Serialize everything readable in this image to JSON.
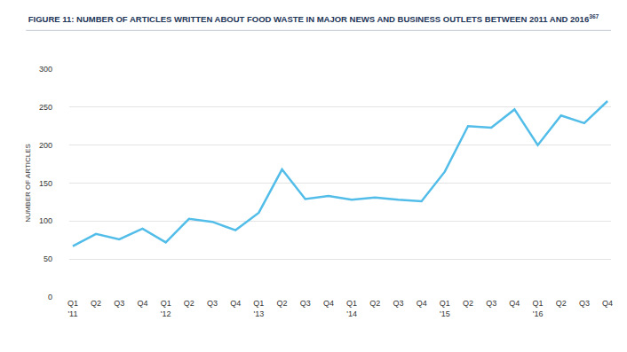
{
  "chart_data": {
    "type": "line",
    "title": "FIGURE 11: NUMBER OF ARTICLES WRITTEN ABOUT FOOD WASTE IN MAJOR NEWS AND BUSINESS OUTLETS BETWEEN 2011 AND 2016",
    "footnote": "367",
    "y_label": "NUMBER OF ARTICLES",
    "categories": [
      "Q1\n'11",
      "Q2",
      "Q3",
      "Q4",
      "Q1\n'12",
      "Q2",
      "Q3",
      "Q4",
      "Q1\n'13",
      "Q2",
      "Q3",
      "Q4",
      "Q1\n'14",
      "Q2",
      "Q3",
      "Q4",
      "Q1\n'15",
      "Q2",
      "Q3",
      "Q4",
      "Q1\n'16",
      "Q2",
      "Q3",
      "Q4"
    ],
    "values": [
      67,
      83,
      76,
      90,
      72,
      103,
      99,
      88,
      111,
      168,
      129,
      133,
      128,
      131,
      128,
      126,
      165,
      225,
      223,
      247,
      200,
      239,
      229,
      258
    ],
    "color": "#52bde8",
    "ylim": [
      0,
      300
    ],
    "yticks": [
      0,
      50,
      100,
      150,
      200,
      250,
      300
    ],
    "grid": true
  }
}
